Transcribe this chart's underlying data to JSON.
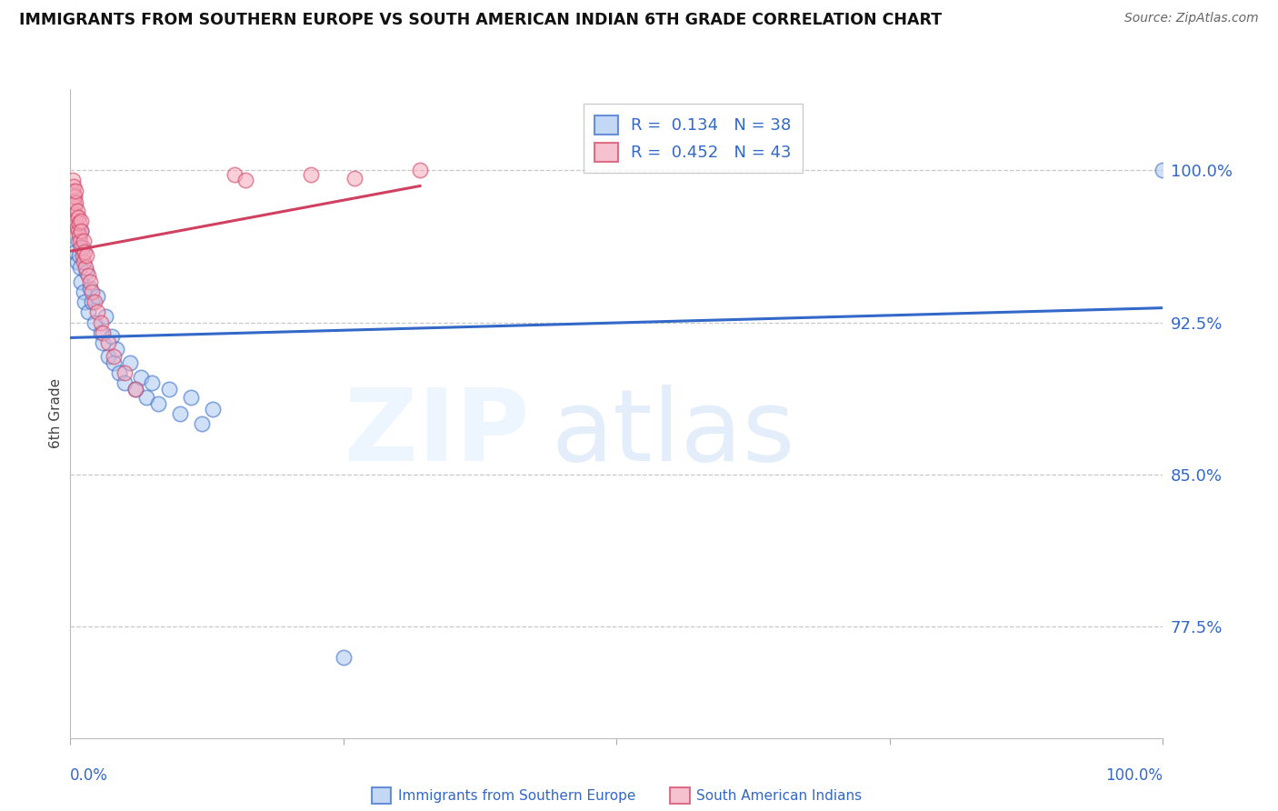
{
  "title": "IMMIGRANTS FROM SOUTHERN EUROPE VS SOUTH AMERICAN INDIAN 6TH GRADE CORRELATION CHART",
  "source_text": "Source: ZipAtlas.com",
  "ylabel": "6th Grade",
  "yticks": [
    0.775,
    0.85,
    0.925,
    1.0
  ],
  "ytick_labels": [
    "77.5%",
    "85.0%",
    "92.5%",
    "100.0%"
  ],
  "xlim": [
    0.0,
    1.0
  ],
  "ylim": [
    0.72,
    1.04
  ],
  "blue_R": "0.134",
  "blue_N": "38",
  "pink_R": "0.452",
  "pink_N": "43",
  "blue_color": "#aac8f0",
  "pink_color": "#f5a8bc",
  "blue_line_color": "#3368c8",
  "pink_line_color": "#d04060",
  "legend_label_blue": "Immigrants from Southern Europe",
  "legend_label_pink": "South American Indians",
  "blue_scatter_x": [
    0.005,
    0.006,
    0.007,
    0.008,
    0.009,
    0.01,
    0.01,
    0.011,
    0.012,
    0.013,
    0.015,
    0.016,
    0.018,
    0.02,
    0.022,
    0.025,
    0.028,
    0.03,
    0.032,
    0.035,
    0.038,
    0.04,
    0.042,
    0.045,
    0.05,
    0.055,
    0.06,
    0.065,
    0.07,
    0.075,
    0.08,
    0.09,
    0.1,
    0.11,
    0.12,
    0.13,
    0.25,
    1.0
  ],
  "blue_scatter_y": [
    0.96,
    0.955,
    0.965,
    0.958,
    0.952,
    0.97,
    0.945,
    0.962,
    0.94,
    0.935,
    0.95,
    0.93,
    0.942,
    0.935,
    0.925,
    0.938,
    0.92,
    0.915,
    0.928,
    0.908,
    0.918,
    0.905,
    0.912,
    0.9,
    0.895,
    0.905,
    0.892,
    0.898,
    0.888,
    0.895,
    0.885,
    0.892,
    0.88,
    0.888,
    0.875,
    0.882,
    0.76,
    1.0
  ],
  "pink_scatter_x": [
    0.002,
    0.002,
    0.003,
    0.003,
    0.003,
    0.004,
    0.004,
    0.005,
    0.005,
    0.005,
    0.005,
    0.006,
    0.006,
    0.007,
    0.007,
    0.008,
    0.008,
    0.009,
    0.01,
    0.01,
    0.01,
    0.011,
    0.012,
    0.012,
    0.013,
    0.014,
    0.015,
    0.016,
    0.018,
    0.02,
    0.022,
    0.025,
    0.028,
    0.03,
    0.035,
    0.04,
    0.05,
    0.06,
    0.15,
    0.16,
    0.22,
    0.26,
    0.32
  ],
  "pink_scatter_y": [
    0.995,
    0.99,
    0.988,
    0.985,
    0.992,
    0.982,
    0.987,
    0.978,
    0.984,
    0.975,
    0.99,
    0.972,
    0.98,
    0.97,
    0.977,
    0.968,
    0.974,
    0.965,
    0.975,
    0.962,
    0.97,
    0.958,
    0.965,
    0.955,
    0.96,
    0.952,
    0.958,
    0.948,
    0.945,
    0.94,
    0.935,
    0.93,
    0.925,
    0.92,
    0.915,
    0.908,
    0.9,
    0.892,
    0.998,
    0.995,
    0.998,
    0.996,
    1.0
  ]
}
